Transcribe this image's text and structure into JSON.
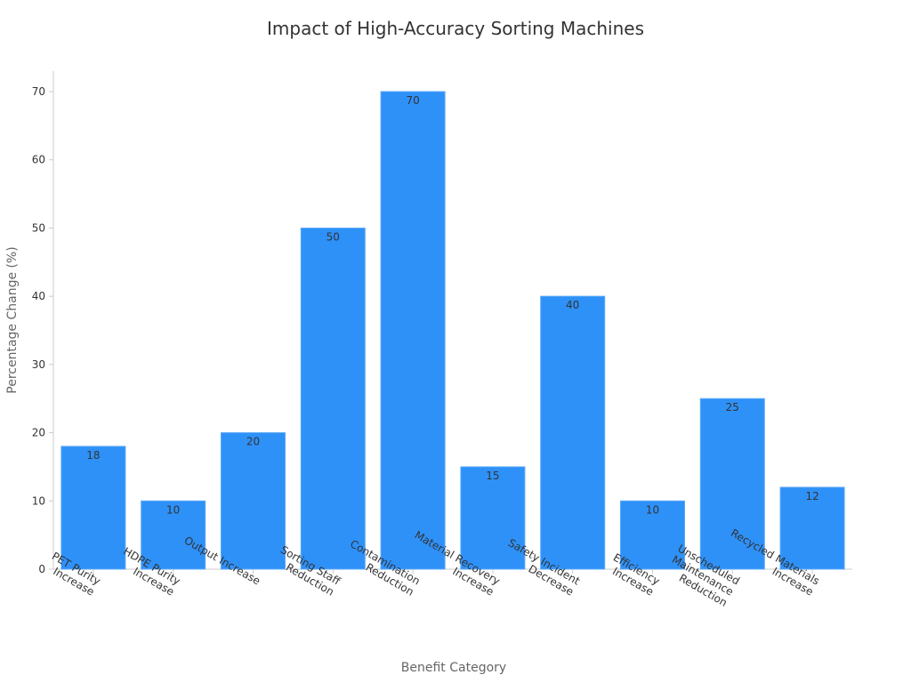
{
  "chart_data": {
    "type": "bar",
    "title": "Impact of High-Accuracy Sorting Machines",
    "xlabel": "Benefit Category",
    "ylabel": "Percentage Change (%)",
    "categories": [
      "PET Purity Increase",
      "HDPE Purity Increase",
      "Output Increase",
      "Sorting Staff Reduction",
      "Contamination Reduction",
      "Material Recovery Increase",
      "Safety Incident Decrease",
      "Efficiency Increase",
      "Unscheduled Maintenance Reduction",
      "Recycled Materials Increase"
    ],
    "category_label_lines": [
      [
        "PET Purity",
        "Increase"
      ],
      [
        "HDPE Purity",
        "Increase"
      ],
      [
        "Output Increase"
      ],
      [
        "Sorting Staff",
        "Reduction"
      ],
      [
        "Contamination",
        "Reduction"
      ],
      [
        "Material Recovery",
        "Increase"
      ],
      [
        "Safety Incident",
        "Decrease"
      ],
      [
        "Efficiency",
        "Increase"
      ],
      [
        "Unscheduled",
        "Maintenance",
        "Reduction"
      ],
      [
        "Recycled Materials",
        "Increase"
      ]
    ],
    "values": [
      18,
      10,
      20,
      50,
      70,
      15,
      40,
      10,
      25,
      12
    ],
    "ylim": [
      0,
      73
    ],
    "yticks": [
      0,
      10,
      20,
      30,
      40,
      50,
      60,
      70
    ],
    "grid": false,
    "bar_color": "#2e91f8",
    "data_labels": true
  }
}
